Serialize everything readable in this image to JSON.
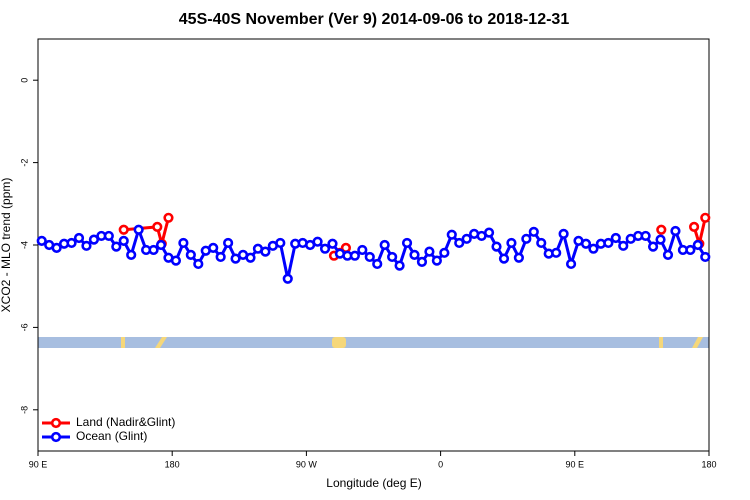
{
  "chart_data": {
    "type": "line",
    "title": "45S-40S November (Ver 9)   2014-09-06 to 2018-12-31",
    "xlabel": "Longitude (deg E)",
    "ylabel": "XCO2 - MLO trend (ppm)",
    "xlim": [
      90,
      540
    ],
    "xticks": [
      {
        "value": 90,
        "label": "90 E"
      },
      {
        "value": 180,
        "label": "180"
      },
      {
        "value": 270,
        "label": "90 W"
      },
      {
        "value": 360,
        "label": "0"
      },
      {
        "value": 450,
        "label": "90 E"
      },
      {
        "value": 540,
        "label": "180"
      }
    ],
    "ylim": [
      -9,
      1
    ],
    "yticks": [
      0,
      -2,
      -4,
      -6,
      -8
    ],
    "legend": "bottom-left",
    "series": [
      {
        "name": "Land (Nadir&Glint)",
        "color": "#ff0000",
        "x": [
          147.5,
          170,
          173,
          177.5,
          null,
          288.5,
          292.5,
          296.5,
          null,
          508,
          null,
          530,
          533.5,
          537.5
        ],
        "values": [
          -3.63,
          -3.56,
          -3.97,
          -3.34,
          null,
          -4.26,
          -4.19,
          -4.07,
          null,
          -3.63,
          null,
          -3.56,
          -3.97,
          -3.34
        ]
      },
      {
        "name": "Ocean (Glint)",
        "color": "#0000ff",
        "x": [
          92.5,
          97.5,
          102.5,
          107.5,
          112.5,
          117.5,
          122.5,
          127.5,
          132.5,
          137.5,
          142.5,
          147.5,
          152.5,
          157.5,
          162.5,
          167.5,
          172.5,
          177.5,
          182.5,
          187.5,
          192.5,
          197.5,
          202.5,
          207.5,
          212.5,
          217.5,
          222.5,
          227.5,
          232.5,
          237.5,
          242.5,
          247.5,
          252.5,
          257.5,
          262.5,
          267.5,
          272.5,
          277.5,
          282.5,
          287.5,
          292.5,
          297.5,
          302.5,
          307.5,
          312.5,
          317.5,
          322.5,
          327.5,
          332.5,
          337.5,
          342.5,
          347.5,
          352.5,
          357.5,
          362.5,
          367.5,
          372.5,
          377.5,
          382.5,
          387.5,
          392.5,
          397.5,
          402.5,
          407.5,
          412.5,
          417.5,
          422.5,
          427.5,
          432.5,
          437.5,
          442.5,
          447.5,
          452.5,
          457.5,
          462.5,
          467.5,
          472.5,
          477.5,
          482.5,
          487.5,
          492.5,
          497.5,
          502.5,
          507.5,
          512.5,
          517.5,
          522.5,
          527.5,
          532.5,
          537.5
        ],
        "values": [
          -3.9,
          -4.0,
          -4.07,
          -3.97,
          -3.95,
          -3.83,
          -4.02,
          -3.87,
          -3.78,
          -3.78,
          -4.04,
          -3.9,
          -4.24,
          -3.63,
          -4.12,
          -4.12,
          -4.0,
          -4.31,
          -4.38,
          -3.95,
          -4.24,
          -4.46,
          -4.14,
          -4.07,
          -4.29,
          -3.95,
          -4.33,
          -4.24,
          -4.31,
          -4.09,
          -4.16,
          -4.02,
          -3.95,
          -4.82,
          -3.97,
          -3.95,
          -4.0,
          -3.92,
          -4.09,
          -3.97,
          -4.21,
          -4.26,
          -4.26,
          -4.12,
          -4.29,
          -4.46,
          -4.0,
          -4.29,
          -4.5,
          -3.95,
          -4.24,
          -4.41,
          -4.16,
          -4.38,
          -4.19,
          -3.75,
          -3.95,
          -3.85,
          -3.73,
          -3.78,
          -3.7,
          -4.04,
          -4.33,
          -3.95,
          -4.31,
          -3.85,
          -3.68,
          -3.95,
          -4.21,
          -4.19,
          -3.73,
          -4.46,
          -3.9,
          -3.97,
          -4.09,
          -3.97,
          -3.95,
          -3.83,
          -4.02,
          -3.85,
          -3.78,
          -3.78,
          -4.04,
          -3.87,
          -4.24,
          -3.66,
          -4.12,
          -4.12,
          -4.0,
          -4.29
        ]
      }
    ]
  }
}
